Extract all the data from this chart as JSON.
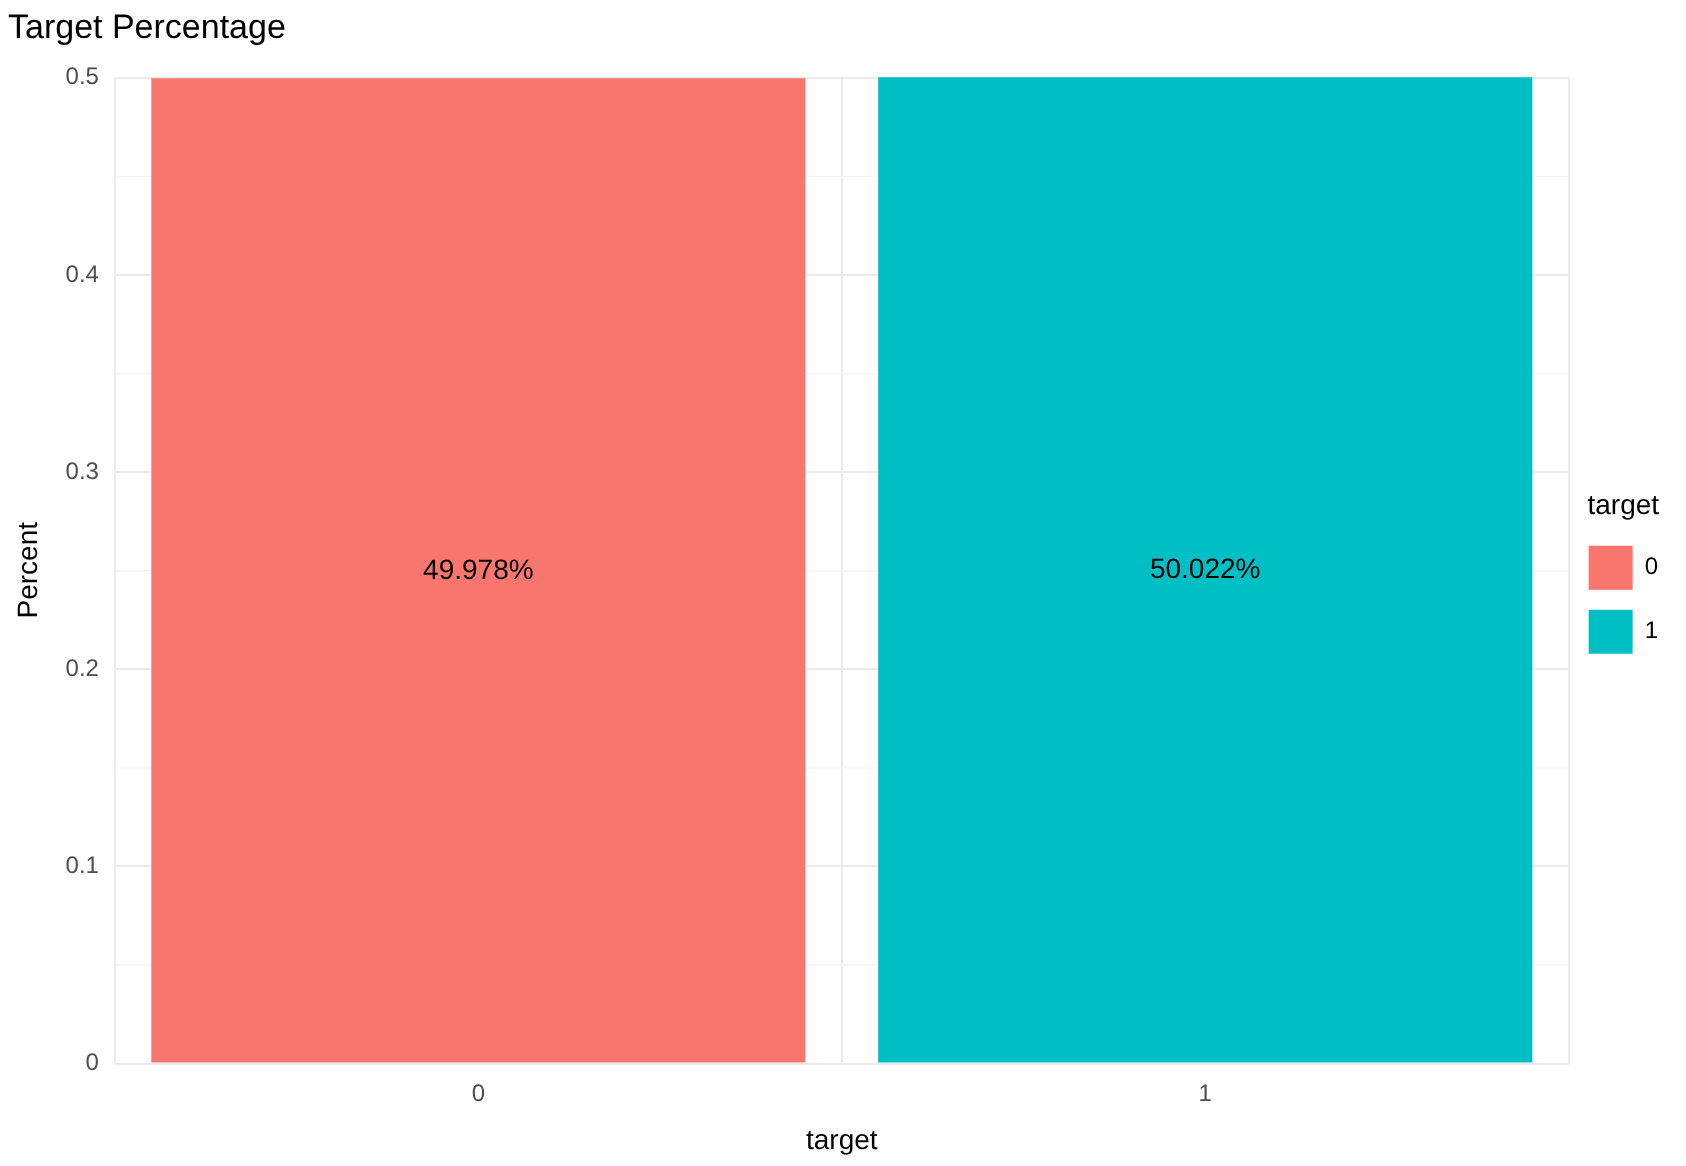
{
  "chart_data": {
    "type": "bar",
    "title": "Target Percentage",
    "xlabel": "target",
    "ylabel": "Percent",
    "legend_title": "target",
    "categories": [
      "0",
      "1"
    ],
    "series": [
      {
        "name": "0",
        "color": "#f8766d",
        "values": [
          0.49978,
          null
        ],
        "value_labels": [
          "49.978%",
          null
        ]
      },
      {
        "name": "1",
        "color": "#00bfc4",
        "values": [
          null,
          0.50022
        ],
        "value_labels": [
          null,
          "50.022%"
        ]
      }
    ],
    "ylim": [
      0,
      0.5005
    ],
    "yticks": [
      0,
      0.1,
      0.2,
      0.3,
      0.4,
      0.5
    ],
    "grid": true,
    "legend": "right"
  }
}
